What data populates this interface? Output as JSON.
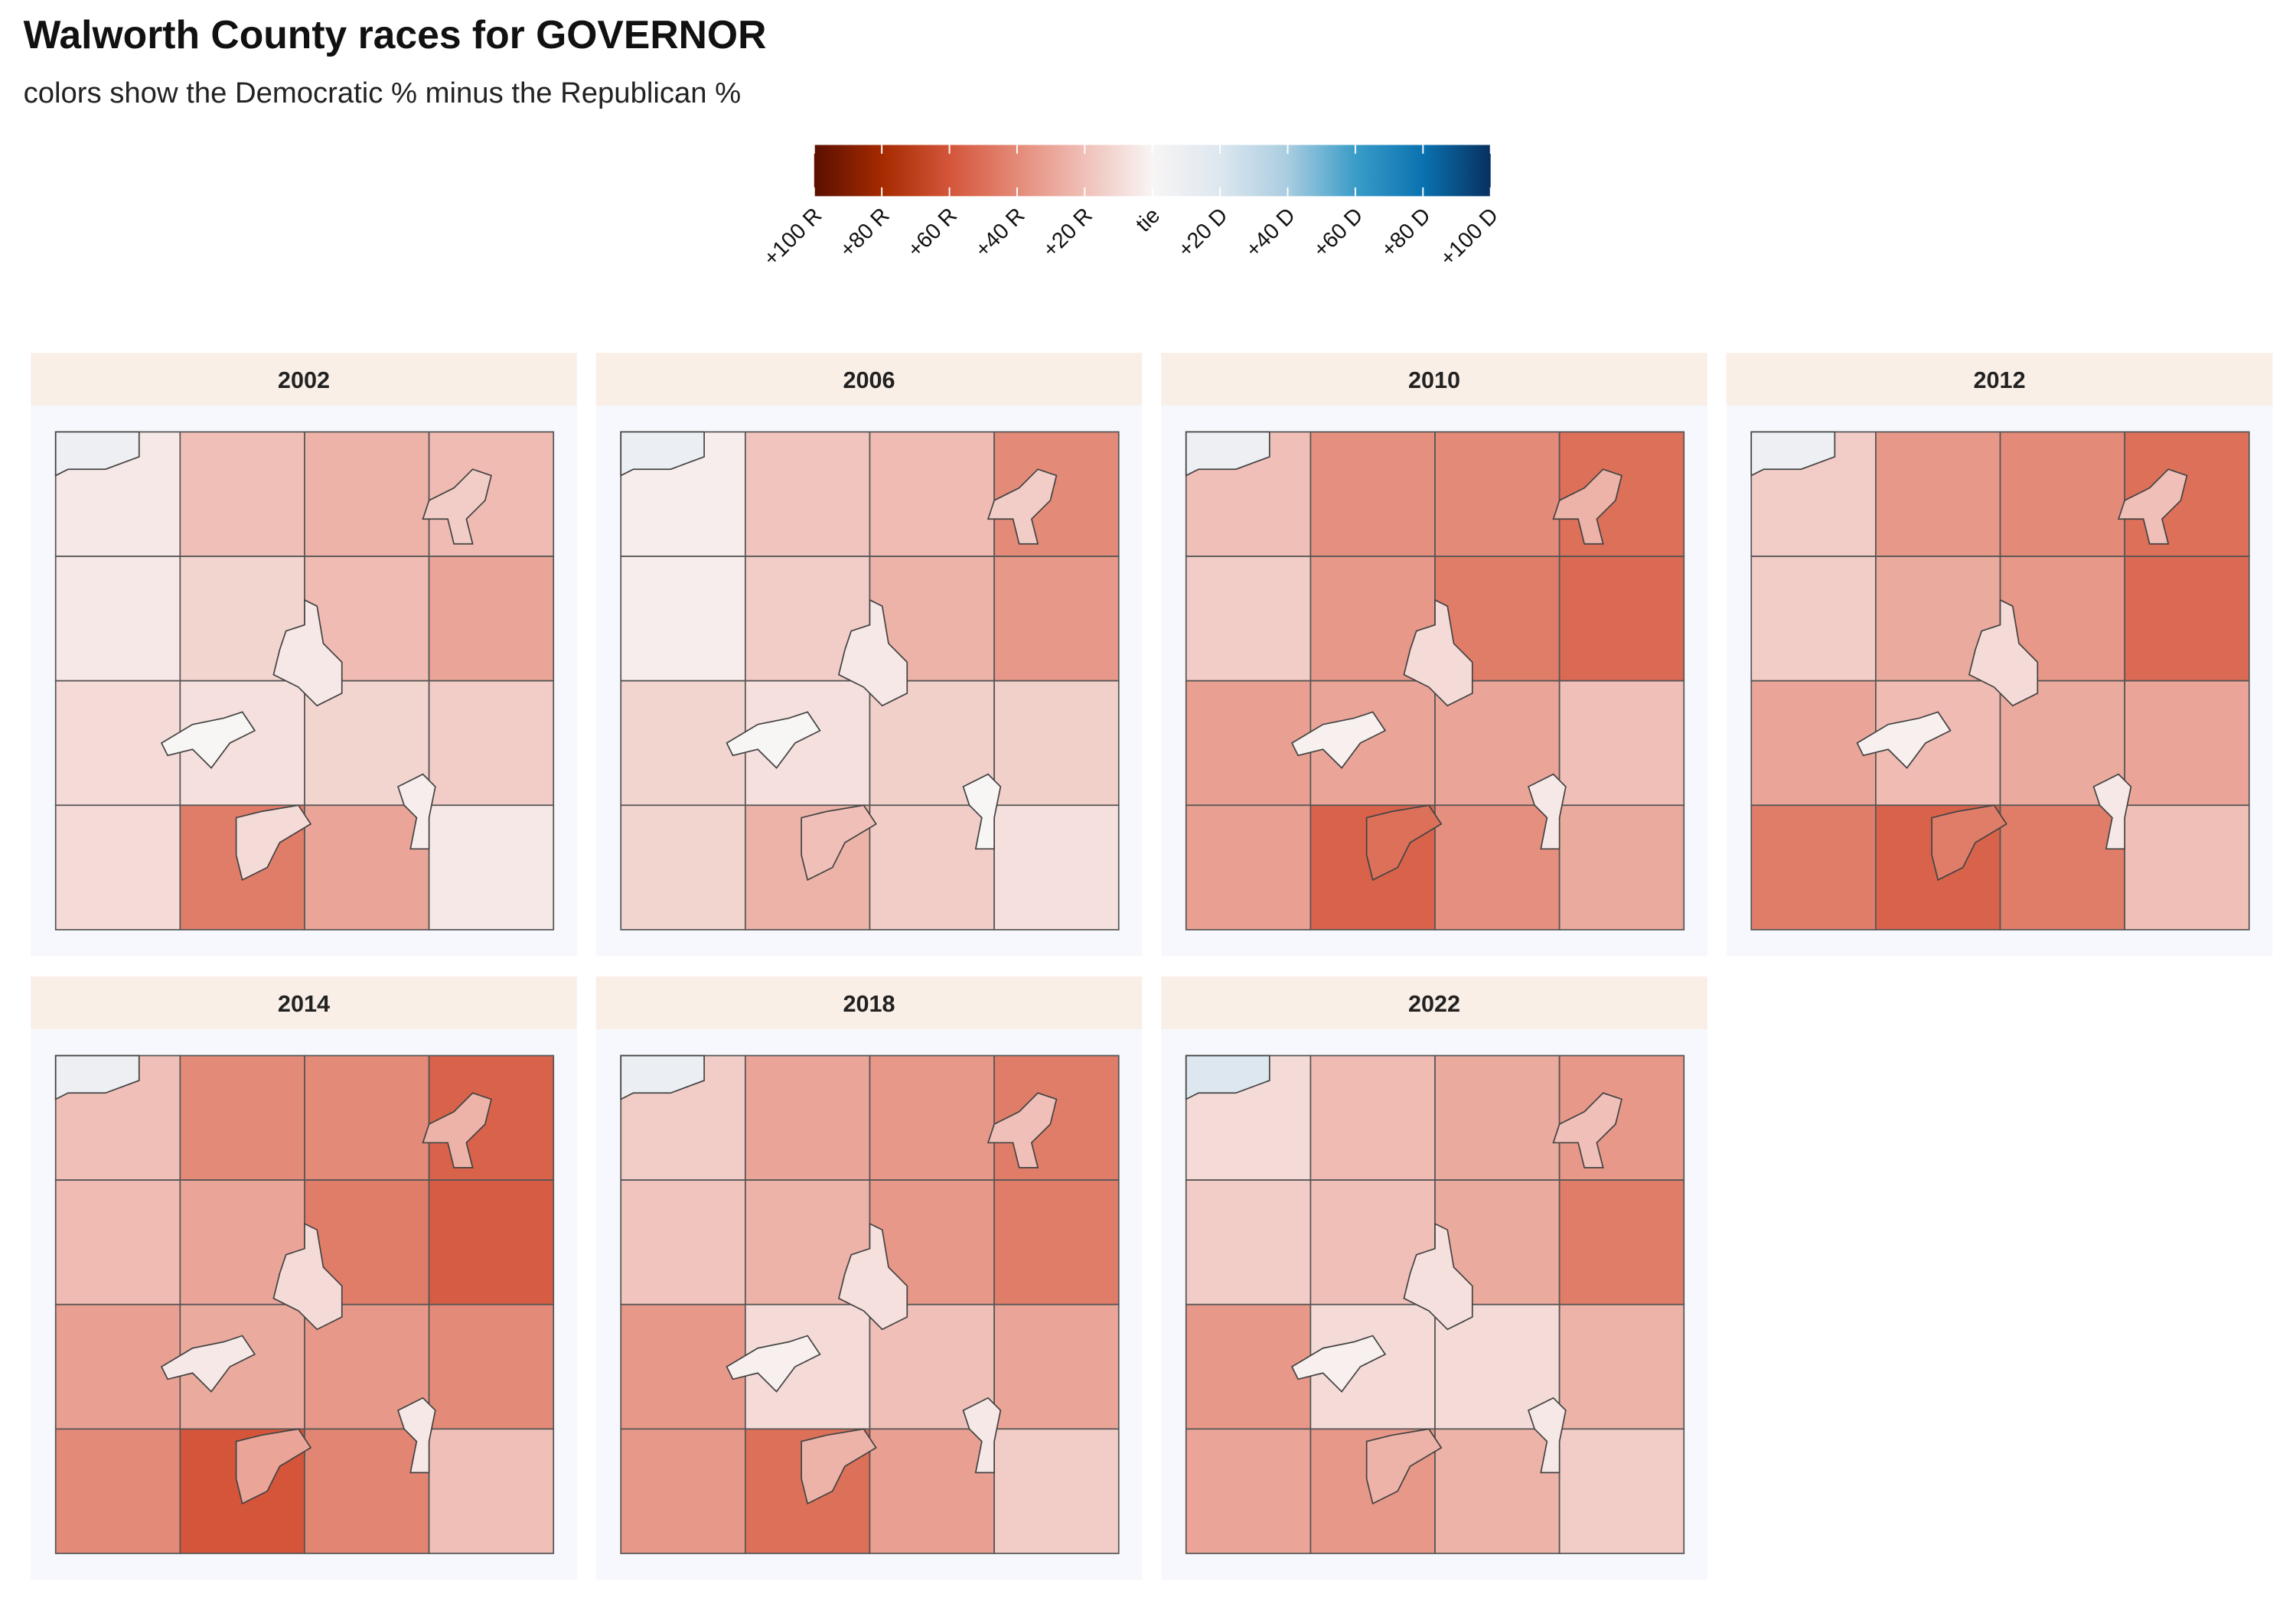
{
  "chart_data": {
    "type": "choropleth",
    "title": "Walworth County races for GOVERNOR",
    "subtitle": "colors show the Democratic % minus the Republican %",
    "legend": {
      "ticks": [
        {
          "value": -100,
          "label": "+100 R"
        },
        {
          "value": -80,
          "label": "+80 R"
        },
        {
          "value": -60,
          "label": "+60 R"
        },
        {
          "value": -40,
          "label": "+40 R"
        },
        {
          "value": -20,
          "label": "+20 R"
        },
        {
          "value": 0,
          "label": "tie"
        },
        {
          "value": 20,
          "label": "+20 D"
        },
        {
          "value": 40,
          "label": "+40 D"
        },
        {
          "value": 60,
          "label": "+60 D"
        },
        {
          "value": 80,
          "label": "+80 D"
        },
        {
          "value": 100,
          "label": "+100 D"
        }
      ],
      "colors": [
        "#5a1000",
        "#a52a00",
        "#d4553a",
        "#e48a78",
        "#f0c0b8",
        "#f8f5f5",
        "#dde7ef",
        "#a9cde0",
        "#3a9cc8",
        "#0a72b0",
        "#083060"
      ]
    },
    "panels": [
      {
        "title": "2002",
        "townships": [
          [
            -5,
            -20,
            -25,
            -22
          ],
          [
            -5,
            -12,
            -22,
            -30
          ],
          [
            -10,
            -8,
            -12,
            -15
          ],
          [
            -10,
            -45,
            -30,
            -5
          ]
        ],
        "cities": [
          8,
          -15,
          -5,
          0,
          -3,
          -10
        ]
      },
      {
        "title": "2006",
        "townships": [
          [
            -3,
            -18,
            -22,
            -40
          ],
          [
            -3,
            -15,
            -25,
            -35
          ],
          [
            -12,
            -8,
            -14,
            -14
          ],
          [
            -12,
            -25,
            -15,
            -8
          ]
        ],
        "cities": [
          10,
          -15,
          -5,
          0,
          0,
          -20
        ]
      },
      {
        "title": "2010",
        "townships": [
          [
            -20,
            -38,
            -40,
            -50
          ],
          [
            -15,
            -35,
            -45,
            -52
          ],
          [
            -32,
            -30,
            -30,
            -20
          ],
          [
            -32,
            -55,
            -38,
            -28
          ]
        ],
        "cities": [
          8,
          -25,
          -10,
          -2,
          -5,
          -50
        ]
      },
      {
        "title": "2012",
        "townships": [
          [
            -15,
            -35,
            -40,
            -50
          ],
          [
            -15,
            -28,
            -35,
            -52
          ],
          [
            -30,
            -22,
            -28,
            -30
          ],
          [
            -45,
            -55,
            -45,
            -20
          ]
        ],
        "cities": [
          8,
          -20,
          -10,
          -2,
          -5,
          -45
        ]
      },
      {
        "title": "2014",
        "townships": [
          [
            -20,
            -40,
            -40,
            -55
          ],
          [
            -22,
            -30,
            -45,
            -57
          ],
          [
            -32,
            -28,
            -35,
            -40
          ],
          [
            -40,
            -60,
            -42,
            -20
          ]
        ],
        "cities": [
          8,
          -25,
          -10,
          -5,
          -5,
          -30
        ]
      },
      {
        "title": "2018",
        "townships": [
          [
            -15,
            -30,
            -35,
            -45
          ],
          [
            -18,
            -25,
            -35,
            -45
          ],
          [
            -35,
            -10,
            -20,
            -30
          ],
          [
            -35,
            -50,
            -32,
            -15
          ]
        ],
        "cities": [
          10,
          -20,
          -8,
          -2,
          -5,
          -25
        ]
      },
      {
        "title": "2022",
        "townships": [
          [
            -10,
            -22,
            -28,
            -35
          ],
          [
            -15,
            -20,
            -28,
            -45
          ],
          [
            -35,
            -10,
            -10,
            -25
          ],
          [
            -30,
            -35,
            -25,
            -15
          ]
        ],
        "cities": [
          20,
          -20,
          -8,
          -2,
          -5,
          -25
        ]
      }
    ]
  }
}
